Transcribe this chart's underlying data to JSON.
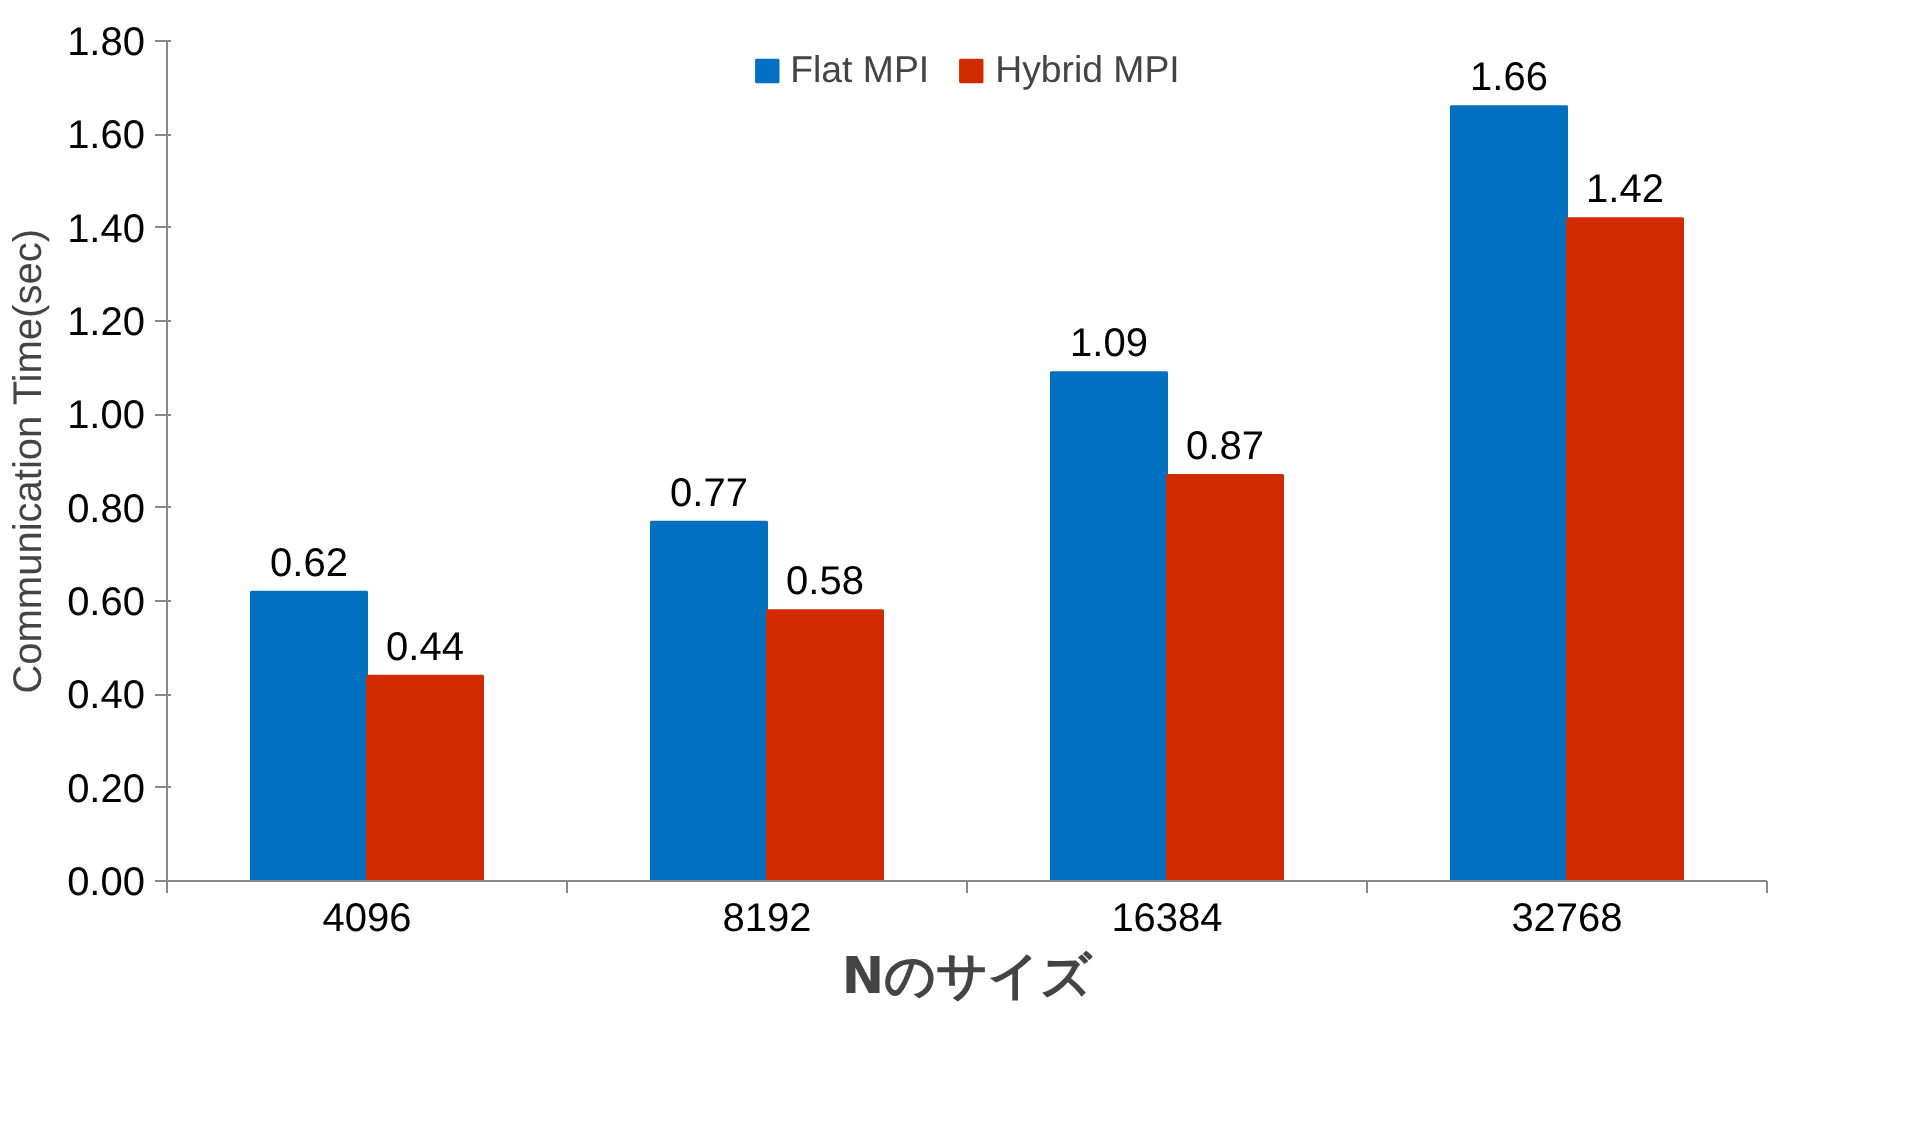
{
  "chart_data": {
    "type": "bar",
    "xlabel": "Nのサイズ",
    "ylabel": "Communication Time(sec)",
    "categories": [
      "4096",
      "8192",
      "16384",
      "32768"
    ],
    "series": [
      {
        "name": "Flat MPI",
        "color": "#0070c0",
        "values": [
          0.62,
          0.77,
          1.09,
          1.66
        ]
      },
      {
        "name": "Hybrid MPI",
        "color": "#d22b00",
        "values": [
          0.44,
          0.58,
          0.87,
          1.42
        ]
      }
    ],
    "ylim": [
      0,
      1.8
    ],
    "yticks": [
      {
        "value": 0,
        "label": "0.00"
      },
      {
        "value": 0.2,
        "label": "0.20"
      },
      {
        "value": 0.4,
        "label": "0.40"
      },
      {
        "value": 0.6,
        "label": "0.60"
      },
      {
        "value": 0.8,
        "label": "0.80"
      },
      {
        "value": 1.0,
        "label": "1.00"
      },
      {
        "value": 1.2,
        "label": "1.20"
      },
      {
        "value": 1.4,
        "label": "1.40"
      },
      {
        "value": 1.6,
        "label": "1.60"
      },
      {
        "value": 1.8,
        "label": "1.80"
      }
    ],
    "data_labels": true,
    "grid": false,
    "legend": "top"
  }
}
